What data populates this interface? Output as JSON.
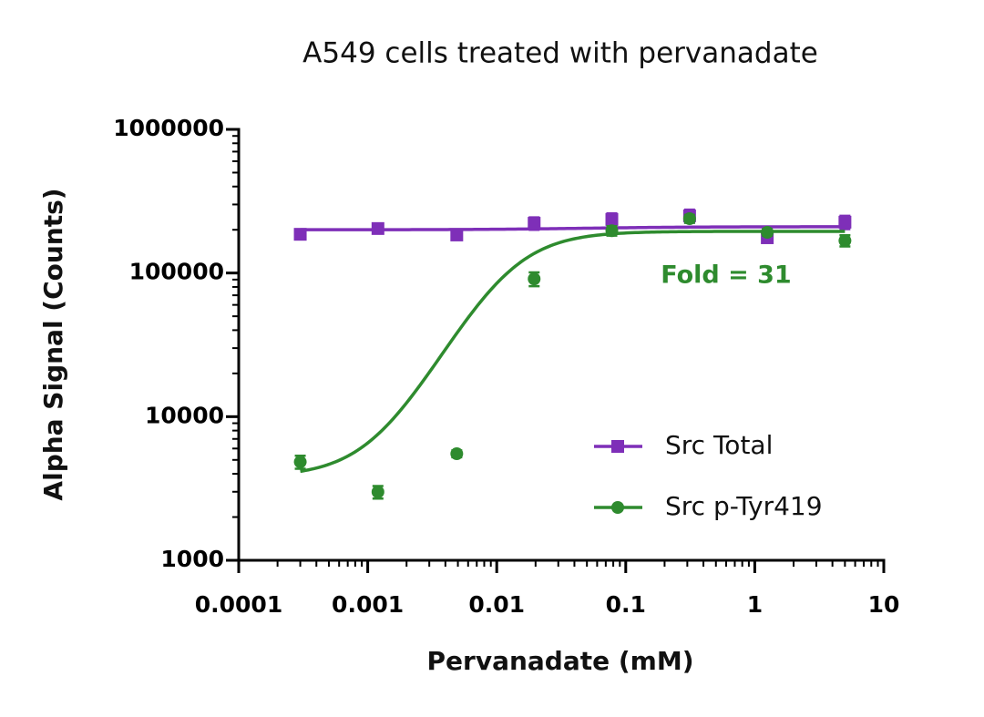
{
  "chart_data": {
    "type": "scatter",
    "title": "A549 cells treated with pervanadate",
    "x_label": "Pervanadate (mM)",
    "y_label": "Alpha Signal (Counts)",
    "x_log": true,
    "y_log": true,
    "xlim": [
      0.0001,
      10
    ],
    "xticks": [
      0.0001,
      0.001,
      0.01,
      0.1,
      1,
      10
    ],
    "ylim": [
      1000,
      1000000
    ],
    "yticks": [
      1000,
      10000,
      100000,
      1000000
    ],
    "legend": "lower right",
    "annotations": [
      {
        "text": "Fold = 31",
        "x": 0.6,
        "y": 95000,
        "color": "#2e8b2e"
      }
    ],
    "x": [
      0.0003,
      0.0012,
      0.0049,
      0.0195,
      0.078,
      0.3125,
      1.25,
      5
    ],
    "series": [
      {
        "name": "Src Total",
        "color": "#7e2fb8",
        "marker": "square",
        "values": [
          186000,
          204000,
          184000,
          222000,
          236000,
          250000,
          176000,
          226000
        ],
        "errors": [
          10000,
          8000,
          10000,
          22000,
          24000,
          26000,
          10000,
          24000
        ],
        "fit": {
          "bottom": 200000,
          "top": 210000,
          "ec50": 0.05,
          "hill": 1
        }
      },
      {
        "name": "Src p-Tyr419",
        "color": "#2e8b2e",
        "marker": "circle",
        "values": [
          4840,
          2990,
          5520,
          91000,
          197000,
          239000,
          192000,
          168000
        ],
        "errors": [
          500,
          300,
          300,
          10000,
          15000,
          15000,
          10000,
          15000
        ],
        "fit": {
          "bottom": 3800,
          "top": 195000,
          "ec50": 0.012,
          "hill": 1.7
        }
      }
    ]
  }
}
